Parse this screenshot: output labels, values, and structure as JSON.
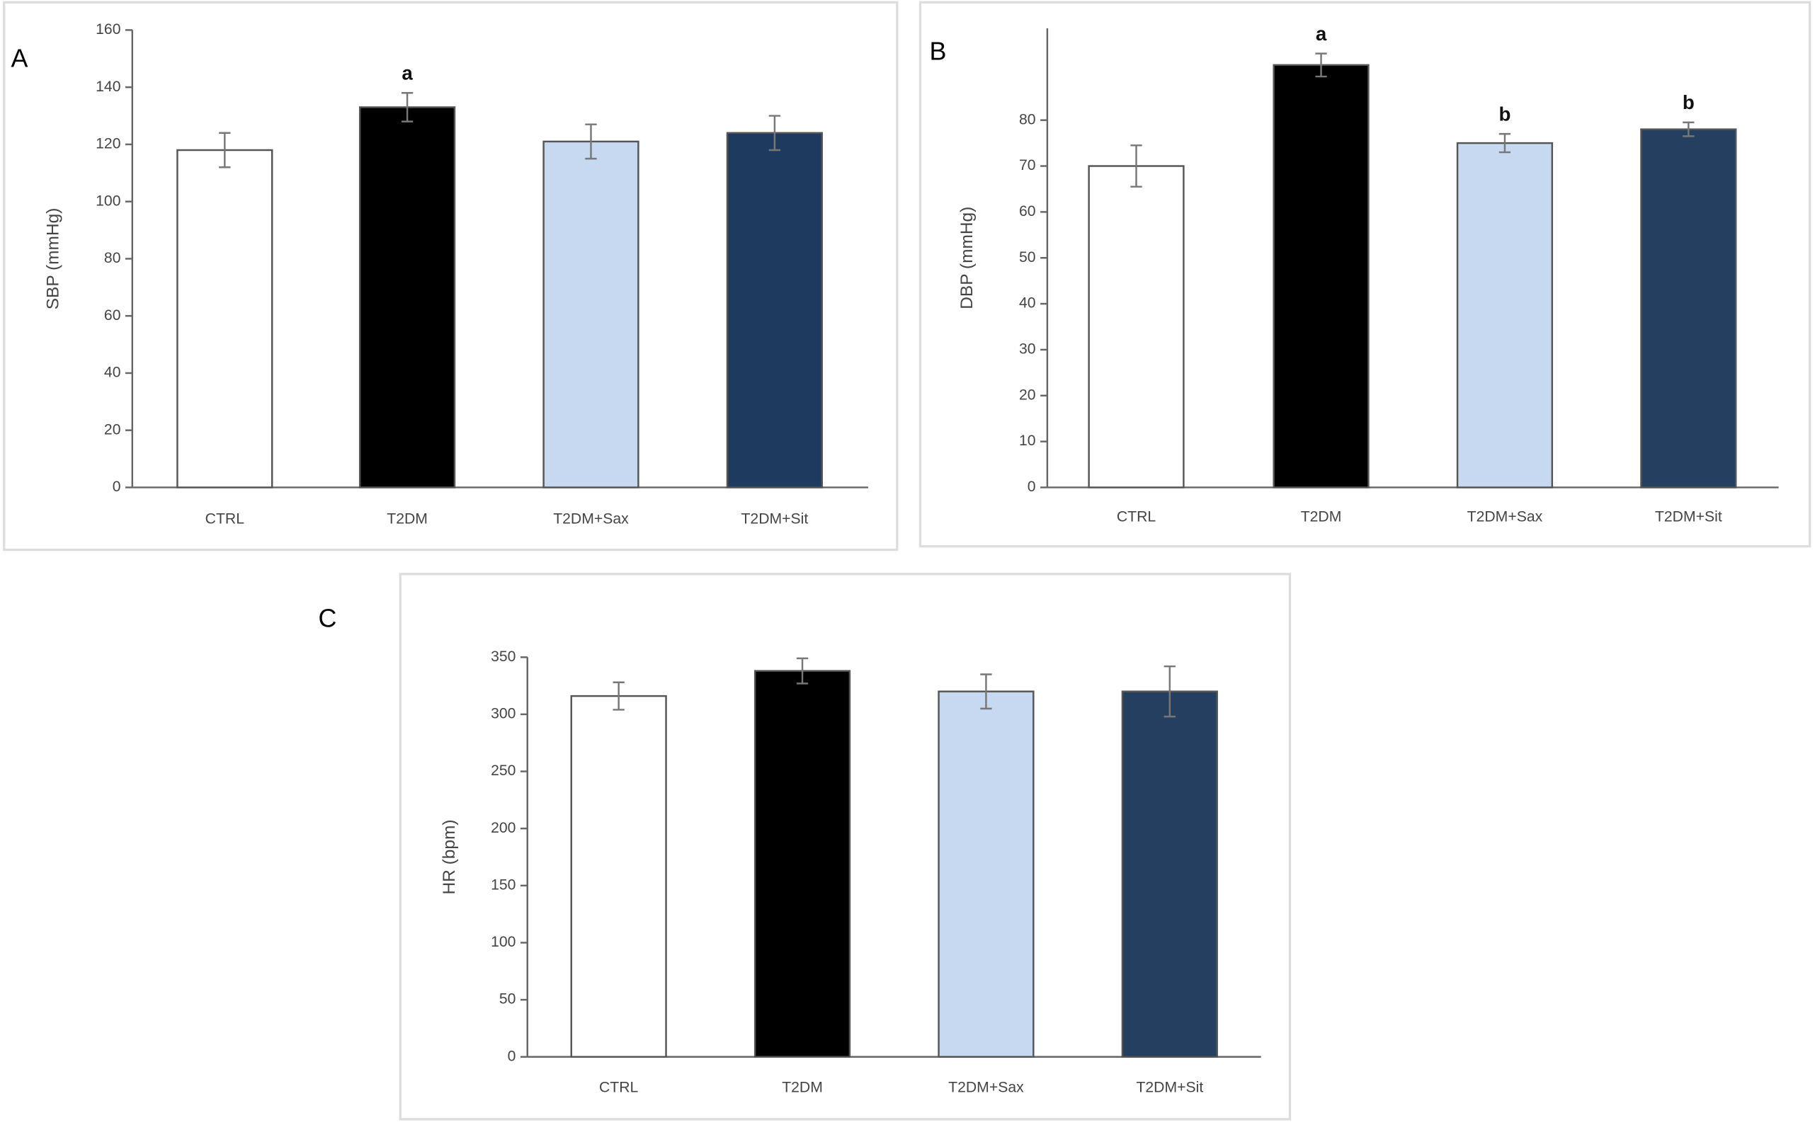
{
  "chart_data": [
    {
      "type": "bar",
      "panel_label": "A",
      "y_label": "SBP (mmHg)",
      "categories": [
        "CTRL",
        "T2DM",
        "T2DM+Sax",
        "T2DM+Sit"
      ],
      "values": [
        118,
        133,
        121,
        124
      ],
      "errors": [
        6,
        5,
        6,
        6
      ],
      "annotations": [
        null,
        "a",
        null,
        null
      ],
      "colors": [
        "#ffffff",
        "#000000",
        "#c6d9f1",
        "#1f3a5f"
      ],
      "ylim": [
        0,
        160
      ],
      "yticks": [
        0,
        20,
        40,
        60,
        80,
        100,
        120,
        140,
        160
      ]
    },
    {
      "type": "bar",
      "panel_label": "B",
      "y_label": "DBP (mmHg)",
      "categories": [
        "CTRL",
        "T2DM",
        "T2DM+Sax",
        "T2DM+Sit"
      ],
      "values": [
        70,
        92,
        75,
        78
      ],
      "errors": [
        4.5,
        2.5,
        2,
        1.5
      ],
      "annotations": [
        null,
        "a",
        "b",
        "b"
      ],
      "colors": [
        "#ffffff",
        "#000000",
        "#c6d9f1",
        "#243f60"
      ],
      "ylim": [
        0,
        100
      ],
      "yticks": [
        0,
        10,
        20,
        30,
        40,
        50,
        60,
        70,
        80
      ]
    },
    {
      "type": "bar",
      "panel_label": "C",
      "y_label": "HR (bpm)",
      "categories": [
        "CTRL",
        "T2DM",
        "T2DM+Sax",
        "T2DM+Sit"
      ],
      "values": [
        316,
        338,
        320,
        320
      ],
      "errors": [
        12,
        11,
        15,
        22
      ],
      "annotations": [
        null,
        null,
        null,
        null
      ],
      "colors": [
        "#ffffff",
        "#000000",
        "#c6d9f1",
        "#243f60"
      ],
      "ylim": [
        0,
        350
      ],
      "yticks": [
        0,
        50,
        100,
        150,
        200,
        250,
        300,
        350
      ]
    }
  ]
}
